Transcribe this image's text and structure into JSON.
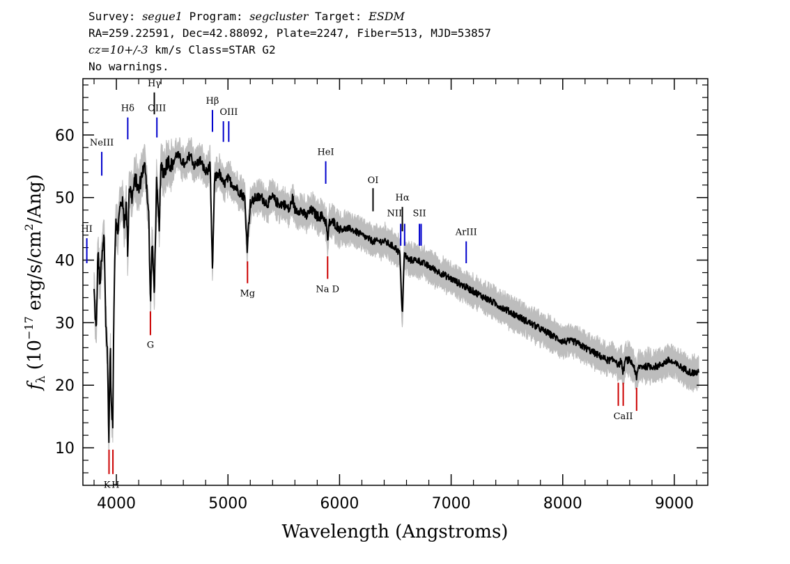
{
  "header": {
    "survey_label": "Survey:",
    "survey": "segue1",
    "program_label": "Program:",
    "program": "segcluster",
    "target_label": "Target:",
    "target": "ESDM",
    "line2": "RA=259.22591, Dec=42.88092, Plate=2247, Fiber=513, MJD=53857",
    "cz_value": "cz=10+/-3",
    "cz_rest": " km/s Class=STAR G2",
    "line4": "No warnings."
  },
  "chart_data": {
    "type": "line",
    "xlabel": "Wavelength (Angstroms)",
    "ylabel_main": "(10",
    "ylabel_sym": "f",
    "ylabel_sub": "λ",
    "ylabel_exp": "−17",
    "ylabel_unit": "erg/s/cm",
    "ylabel_sq": "2",
    "ylabel_tail": "/Ang)",
    "xlim": [
      3700,
      9300
    ],
    "ylim": [
      4,
      69
    ],
    "grid": false,
    "xticks": [
      4000,
      5000,
      6000,
      7000,
      8000,
      9000
    ],
    "xtick_labels": [
      "4000",
      "5000",
      "6000",
      "7000",
      "8000",
      "9000"
    ],
    "yticks": [
      10,
      20,
      30,
      40,
      50,
      60
    ],
    "ytick_labels": [
      "10",
      "20",
      "30",
      "40",
      "50",
      "60"
    ],
    "series": [
      {
        "style": "spectrum (black) with noise envelope (gray)",
        "color": "#000000",
        "error_color": "#bdbdbd",
        "x": [
          3800,
          3820,
          3835,
          3850,
          3870,
          3890,
          3905,
          3920,
          3933,
          3945,
          3955,
          3968,
          3980,
          3995,
          4010,
          4030,
          4050,
          4070,
          4090,
          4102,
          4115,
          4140,
          4170,
          4200,
          4230,
          4260,
          4290,
          4305,
          4320,
          4340,
          4360,
          4383,
          4400,
          4430,
          4460,
          4500,
          4540,
          4580,
          4620,
          4660,
          4700,
          4750,
          4800,
          4840,
          4861,
          4880,
          4920,
          4960,
          5000,
          5050,
          5100,
          5150,
          5172,
          5183,
          5200,
          5250,
          5300,
          5350,
          5400,
          5450,
          5500,
          5550,
          5580,
          5600,
          5650,
          5700,
          5750,
          5800,
          5850,
          5880,
          5893,
          5910,
          5950,
          6000,
          6100,
          6200,
          6300,
          6400,
          6500,
          6540,
          6563,
          6580,
          6620,
          6700,
          6800,
          6900,
          7000,
          7100,
          7200,
          7300,
          7400,
          7500,
          7600,
          7700,
          7800,
          7900,
          8000,
          8100,
          8200,
          8300,
          8400,
          8480,
          8498,
          8520,
          8542,
          8560,
          8600,
          8640,
          8662,
          8680,
          8750,
          8850,
          8950,
          9050,
          9150,
          9220
        ],
        "y": [
          35,
          28,
          42,
          36,
          40,
          44,
          30,
          25,
          11,
          27,
          16,
          14,
          36,
          47,
          44,
          48,
          50,
          46,
          49,
          41,
          52,
          50,
          53,
          51,
          54,
          55,
          47,
          33,
          43,
          35,
          52,
          45,
          55,
          54,
          56,
          55,
          57,
          56,
          55,
          57,
          55,
          56,
          54,
          55,
          38,
          53,
          54,
          52,
          53,
          52,
          51,
          50,
          42,
          45,
          49,
          50,
          50,
          49,
          50,
          49,
          49,
          48,
          50,
          48,
          48,
          47,
          48,
          47,
          47,
          46,
          43,
          46,
          46,
          45,
          45,
          44,
          43,
          43,
          42,
          41,
          31,
          41,
          40,
          40,
          39,
          38,
          37,
          36,
          35,
          34,
          33,
          32,
          31,
          30,
          29,
          28,
          27,
          27,
          26,
          25,
          24,
          24,
          23,
          24,
          22,
          24,
          24,
          23,
          21,
          23,
          23,
          23,
          24,
          23,
          22,
          22
        ]
      }
    ],
    "emission_lines": [
      {
        "label": "HI",
        "wavelength": 3735,
        "y_from": 39.5,
        "y_to": 43.5,
        "label_y": 44.5,
        "color": "#0000cc",
        "clip": true
      },
      {
        "label": "NeIII",
        "wavelength": 3869,
        "y_from": 53.5,
        "y_to": 57.3,
        "label_y": 58.3,
        "color": "#0000cc"
      },
      {
        "label": "Hδ",
        "wavelength": 4102,
        "y_from": 59.3,
        "y_to": 62.8,
        "label_y": 63.8,
        "color": "#0000cc"
      },
      {
        "label": "Hγ",
        "wavelength": 4340,
        "y_from": 63.3,
        "y_to": 66.8,
        "label_y": 67.8,
        "color": "#000000"
      },
      {
        "label": "OIII",
        "wavelength": 4363,
        "y_from": 59.6,
        "y_to": 62.8,
        "label_y": 63.8,
        "color": "#0000cc"
      },
      {
        "label": "Hβ",
        "wavelength": 4861,
        "y_from": 60.5,
        "y_to": 64.0,
        "label_y": 65.0,
        "color": "#0000cc"
      },
      {
        "label": "OIII",
        "wavelength": 4959,
        "y_from": 58.9,
        "y_to": 62.2,
        "label_y": null,
        "color": "#0000cc"
      },
      {
        "label": "OIII",
        "wavelength": 5007,
        "y_from": 58.9,
        "y_to": 62.2,
        "label_y": 63.2,
        "color": "#0000cc"
      },
      {
        "label": "HeI",
        "wavelength": 5876,
        "y_from": 52.2,
        "y_to": 55.8,
        "label_y": 56.8,
        "color": "#0000cc"
      },
      {
        "label": "OI",
        "wavelength": 6300,
        "y_from": 47.8,
        "y_to": 51.5,
        "label_y": 52.3,
        "color": "#000000"
      },
      {
        "label": "NII",
        "wavelength": 6548,
        "y_from": 42.3,
        "y_to": 45.8,
        "label_y": 47.0,
        "color": "#0000cc",
        "anchor": "end"
      },
      {
        "label": "Hα",
        "wavelength": 6563,
        "y_from": 44.6,
        "y_to": 48.5,
        "label_y": 49.5,
        "color": "#000000"
      },
      {
        "label": "NII",
        "wavelength": 6583,
        "y_from": 42.3,
        "y_to": 45.8,
        "label_y": null,
        "color": "#0000cc"
      },
      {
        "label": "SII",
        "wavelength": 6716,
        "y_from": 42.3,
        "y_to": 45.8,
        "label_y": 47.0,
        "color": "#0000cc"
      },
      {
        "label": "SII",
        "wavelength": 6731,
        "y_from": 42.3,
        "y_to": 45.8,
        "label_y": null,
        "color": "#0000cc"
      },
      {
        "label": "ArIII",
        "wavelength": 7135,
        "y_from": 39.5,
        "y_to": 43.0,
        "label_y": 44.0,
        "color": "#0000cc"
      }
    ],
    "absorption_lines": [
      {
        "label": "K",
        "wavelength": 3934,
        "y_from": 5.8,
        "y_to": 9.7,
        "label_y": 3.6,
        "color": "#cc0000",
        "anchor": "end"
      },
      {
        "label": "H",
        "wavelength": 3969,
        "y_from": 5.8,
        "y_to": 9.7,
        "label_y": 3.6,
        "color": "#cc0000",
        "anchor": "start"
      },
      {
        "label": "G",
        "wavelength": 4305,
        "y_from": 28.0,
        "y_to": 31.8,
        "label_y": 26.0,
        "color": "#cc0000"
      },
      {
        "label": "Mg",
        "wavelength": 5175,
        "y_from": 36.3,
        "y_to": 39.8,
        "label_y": 34.2,
        "color": "#cc0000"
      },
      {
        "label": "Na  D",
        "wavelength": 5893,
        "y_from": 37.0,
        "y_to": 40.6,
        "label_y": 34.9,
        "color": "#cc0000"
      },
      {
        "label": "CaII",
        "wavelength": 8498,
        "y_from": 16.7,
        "y_to": 20.4,
        "label_y": null,
        "color": "#cc0000"
      },
      {
        "label": "CaII",
        "wavelength": 8542,
        "y_from": 16.7,
        "y_to": 20.4,
        "label_y": 14.6,
        "color": "#cc0000"
      },
      {
        "label": "CaII",
        "wavelength": 8662,
        "y_from": 15.9,
        "y_to": 19.6,
        "label_y": null,
        "color": "#cc0000"
      }
    ]
  }
}
